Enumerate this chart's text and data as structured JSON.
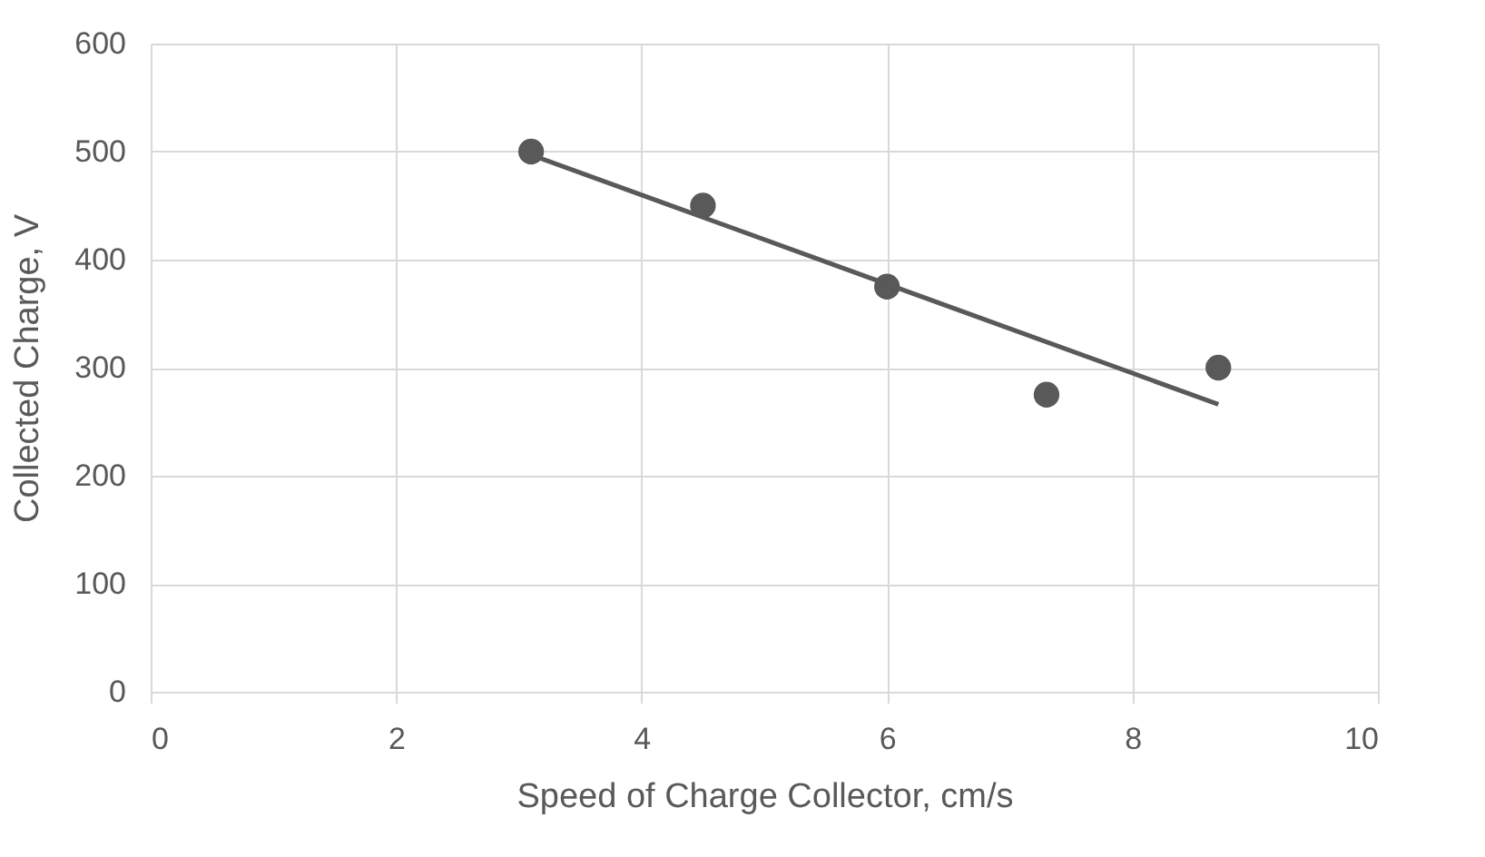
{
  "chart_data": {
    "type": "scatter",
    "xlabel": "Speed of Charge Collector, cm/s",
    "ylabel": "Collected Charge, V",
    "xlim": [
      0,
      10
    ],
    "xticks": [
      0,
      2,
      4,
      6,
      8,
      10
    ],
    "ylim": [
      0,
      600
    ],
    "yticks": [
      0,
      100,
      200,
      300,
      400,
      500,
      600
    ],
    "grid": true,
    "series": [
      {
        "color": "#595959",
        "marker": "circle",
        "x": [
          3.1,
          4.5,
          6,
          7.3,
          8.7
        ],
        "values": [
          500,
          450,
          375,
          275,
          300
        ]
      },
      {
        "type": "line",
        "color": "#595959",
        "marker": "none",
        "line_style": "solid",
        "x": [
          3.1,
          8.7
        ],
        "values": [
          497,
          266
        ]
      }
    ]
  }
}
